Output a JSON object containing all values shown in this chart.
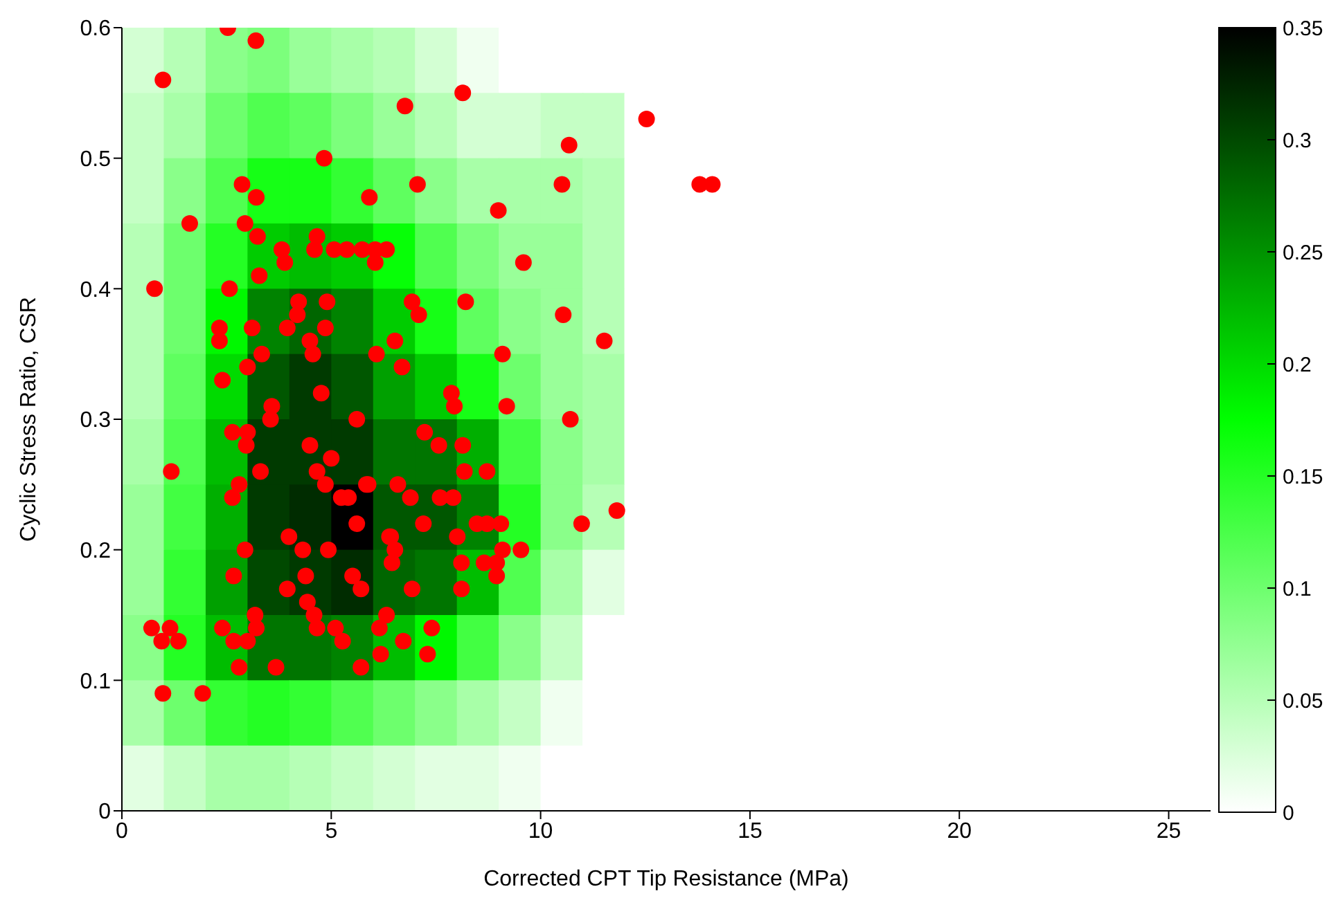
{
  "chart_data": [
    {
      "type": "heatmap",
      "clim": [
        0,
        0.35
      ],
      "cticks": [
        0,
        0.05,
        0.1,
        0.15,
        0.2,
        0.25,
        0.3,
        0.35
      ],
      "categories": [
        null,
        null,
        null,
        null,
        null,
        null,
        null,
        null,
        null,
        null,
        null,
        null,
        null,
        null,
        null,
        null,
        null,
        null,
        null,
        null,
        null,
        null,
        null,
        null,
        null,
        null
      ],
      "y_categories": [
        null,
        null,
        null,
        null,
        null,
        null,
        null,
        null,
        null,
        null,
        null,
        null
      ],
      "cells": [
        [
          0.03,
          0.05,
          0.08,
          0.09,
          0.07,
          0.06,
          0.05,
          0.03,
          0.01,
          0,
          0,
          0,
          0,
          0,
          0,
          0,
          0,
          0,
          0,
          0,
          0,
          0,
          0,
          0,
          0,
          0
        ],
        [
          0.04,
          0.06,
          0.1,
          0.12,
          0.11,
          0.09,
          0.07,
          0.05,
          0.03,
          0.03,
          0.04,
          0.04,
          0,
          0,
          0,
          0,
          0,
          0,
          0,
          0,
          0,
          0,
          0,
          0,
          0,
          0
        ],
        [
          0.04,
          0.08,
          0.12,
          0.16,
          0.16,
          0.14,
          0.11,
          0.08,
          0.06,
          0.06,
          0.06,
          0.05,
          0,
          0,
          0,
          0,
          0,
          0,
          0,
          0,
          0,
          0,
          0,
          0,
          0,
          0
        ],
        [
          0.05,
          0.1,
          0.15,
          0.21,
          0.22,
          0.21,
          0.17,
          0.12,
          0.09,
          0.07,
          0.07,
          0.05,
          0,
          0,
          0,
          0,
          0,
          0,
          0,
          0,
          0,
          0,
          0,
          0,
          0,
          0
        ],
        [
          0.05,
          0.1,
          0.18,
          0.26,
          0.28,
          0.26,
          0.21,
          0.16,
          0.11,
          0.08,
          0.07,
          0.05,
          0,
          0,
          0,
          0,
          0,
          0,
          0,
          0,
          0,
          0,
          0,
          0,
          0,
          0
        ],
        [
          0.05,
          0.11,
          0.2,
          0.29,
          0.31,
          0.29,
          0.24,
          0.21,
          0.16,
          0.1,
          0.07,
          0.06,
          0,
          0,
          0,
          0,
          0,
          0,
          0,
          0,
          0,
          0,
          0,
          0,
          0,
          0
        ],
        [
          0.06,
          0.12,
          0.22,
          0.31,
          0.31,
          0.31,
          0.27,
          0.27,
          0.23,
          0.13,
          0.08,
          0.06,
          0,
          0,
          0,
          0,
          0,
          0,
          0,
          0,
          0,
          0,
          0,
          0,
          0,
          0
        ],
        [
          0.07,
          0.13,
          0.23,
          0.31,
          0.32,
          0.35,
          0.29,
          0.29,
          0.26,
          0.15,
          0.08,
          0.05,
          0,
          0,
          0,
          0,
          0,
          0,
          0,
          0,
          0,
          0,
          0,
          0,
          0,
          0
        ],
        [
          0.07,
          0.14,
          0.24,
          0.3,
          0.31,
          0.32,
          0.28,
          0.27,
          0.22,
          0.12,
          0.06,
          0.02,
          0,
          0,
          0,
          0,
          0,
          0,
          0,
          0,
          0,
          0,
          0,
          0,
          0,
          0
        ],
        [
          0.08,
          0.15,
          0.22,
          0.27,
          0.27,
          0.26,
          0.22,
          0.18,
          0.13,
          0.08,
          0.04,
          0,
          0,
          0,
          0,
          0,
          0,
          0,
          0,
          0,
          0,
          0,
          0,
          0,
          0,
          0
        ],
        [
          0.06,
          0.1,
          0.14,
          0.15,
          0.14,
          0.12,
          0.1,
          0.08,
          0.06,
          0.04,
          0.01,
          0,
          0,
          0,
          0,
          0,
          0,
          0,
          0,
          0,
          0,
          0,
          0,
          0,
          0,
          0
        ],
        [
          0.02,
          0.04,
          0.06,
          0.06,
          0.05,
          0.04,
          0.03,
          0.02,
          0.02,
          0.01,
          0,
          0,
          0,
          0,
          0,
          0,
          0,
          0,
          0,
          0,
          0,
          0,
          0,
          0,
          0,
          0
        ]
      ]
    },
    {
      "type": "scatter",
      "xlabel": "Corrected CPT Tip Resistance (MPa)",
      "ylabel": "Cyclic Stress Ratio, CSR",
      "xlim": [
        0,
        26
      ],
      "xticks": [
        0,
        5,
        10,
        15,
        20,
        25
      ],
      "ylim": [
        0,
        0.6
      ],
      "yticks": [
        0,
        0.1,
        0.2,
        0.3,
        0.4,
        0.5,
        0.6
      ],
      "grid": false,
      "marker": "circle",
      "series": [
        {
          "color": "#ff0000",
          "x": [
            2.53,
            3.2,
            0.98,
            4.83,
            2.87,
            5.91,
            3.21,
            1.62,
            2.94,
            3.24,
            4.66,
            3.82,
            4.6,
            5.07,
            5.37,
            5.74,
            6.05,
            6.32,
            3.89,
            6.05,
            3.28,
            0.78,
            2.57,
            4.22,
            4.9,
            4.19,
            2.33,
            3.11,
            3.95,
            4.86,
            2.33,
            4.49,
            3.34,
            4.56,
            6.08,
            3.0,
            2.4,
            4.76,
            3.58,
            3.55,
            5.61,
            2.64,
            3.0,
            2.97,
            4.49,
            5.0,
            1.18,
            3.31,
            4.66,
            2.8,
            4.86,
            5.84,
            2.64,
            5.24,
            5.41,
            5.61,
            6.39,
            3.99,
            2.94,
            4.32,
            4.93,
            2.67,
            4.39,
            5.51,
            3.95,
            5.71,
            4.43,
            3.18,
            4.59,
            6.32,
            0.71,
            1.15,
            2.4,
            3.21,
            4.66,
            5.1,
            6.15,
            0.95,
            1.35,
            2.67,
            3.0,
            5.27,
            6.18,
            2.8,
            3.68,
            5.71,
            0.98,
            1.93,
            8.14,
            6.76,
            12.53,
            10.68,
            10.51,
            7.06,
            8.99,
            9.59,
            6.93,
            8.21,
            7.09,
            10.54,
            11.52,
            6.52,
            6.69,
            9.09,
            7.87,
            7.94,
            9.19,
            10.71,
            7.23,
            7.57,
            8.14,
            8.18,
            8.72,
            5.88,
            6.59,
            6.89,
            7.6,
            7.91,
            11.82,
            10.98,
            7.2,
            8.48,
            8.72,
            9.05,
            6.42,
            6.52,
            8.01,
            9.09,
            9.53,
            6.45,
            8.11,
            8.65,
            8.95,
            8.95,
            6.93,
            8.11,
            7.4,
            6.72,
            7.3,
            13.8,
            14.1
          ],
          "values": [
            0.6,
            0.59,
            0.56,
            0.5,
            0.48,
            0.47,
            0.47,
            0.45,
            0.45,
            0.44,
            0.44,
            0.43,
            0.43,
            0.43,
            0.43,
            0.43,
            0.43,
            0.43,
            0.42,
            0.42,
            0.41,
            0.4,
            0.4,
            0.39,
            0.39,
            0.38,
            0.37,
            0.37,
            0.37,
            0.37,
            0.36,
            0.36,
            0.35,
            0.35,
            0.35,
            0.34,
            0.33,
            0.32,
            0.31,
            0.3,
            0.3,
            0.29,
            0.29,
            0.28,
            0.28,
            0.27,
            0.26,
            0.26,
            0.26,
            0.25,
            0.25,
            0.25,
            0.24,
            0.24,
            0.24,
            0.22,
            0.21,
            0.21,
            0.2,
            0.2,
            0.2,
            0.18,
            0.18,
            0.18,
            0.17,
            0.17,
            0.16,
            0.15,
            0.15,
            0.15,
            0.14,
            0.14,
            0.14,
            0.14,
            0.14,
            0.14,
            0.14,
            0.13,
            0.13,
            0.13,
            0.13,
            0.13,
            0.12,
            0.11,
            0.11,
            0.11,
            0.09,
            0.09,
            0.55,
            0.54,
            0.53,
            0.51,
            0.48,
            0.48,
            0.46,
            0.42,
            0.39,
            0.39,
            0.38,
            0.38,
            0.36,
            0.36,
            0.34,
            0.35,
            0.32,
            0.31,
            0.31,
            0.3,
            0.29,
            0.28,
            0.28,
            0.26,
            0.26,
            0.25,
            0.25,
            0.24,
            0.24,
            0.24,
            0.23,
            0.22,
            0.22,
            0.22,
            0.22,
            0.22,
            0.21,
            0.2,
            0.21,
            0.2,
            0.2,
            0.19,
            0.19,
            0.19,
            0.19,
            0.18,
            0.17,
            0.17,
            0.14,
            0.13,
            0.12,
            0.48,
            0.48
          ]
        }
      ]
    }
  ]
}
